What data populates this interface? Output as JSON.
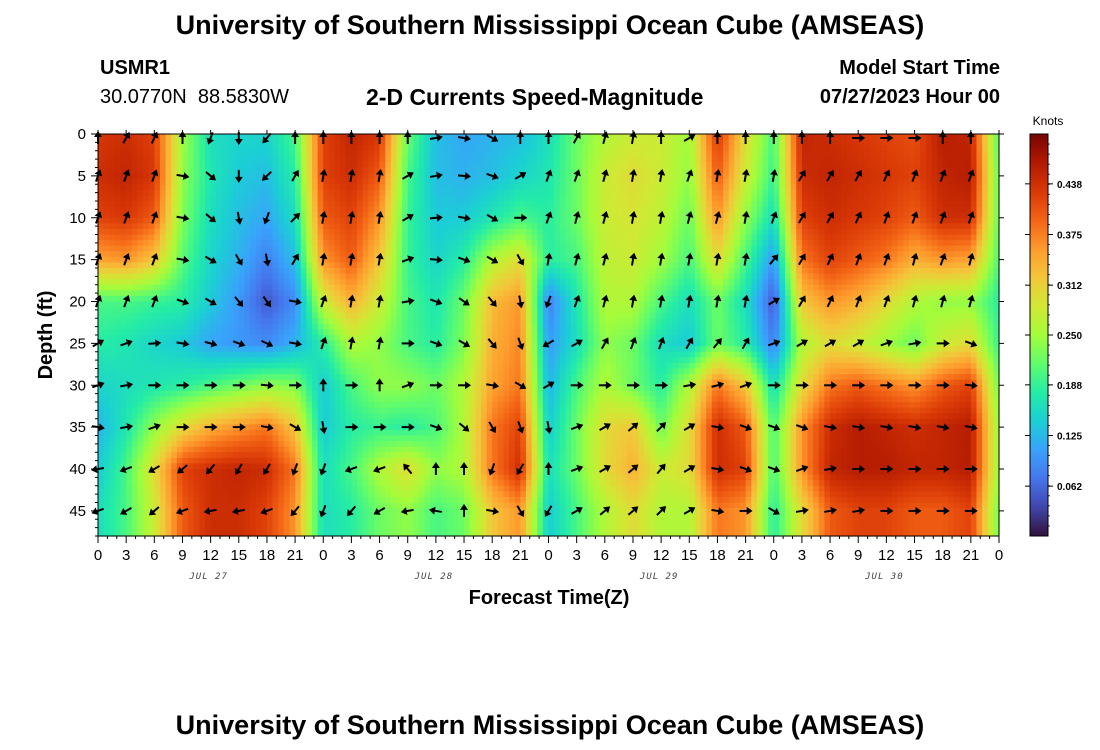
{
  "header": {
    "title": "University of Southern Mississippi Ocean Cube (AMSEAS)",
    "station_id": "USMR1",
    "station_coords": "30.0770N  88.5830W",
    "chart_subtitle": "2-D Currents Speed-Magnitude",
    "model_start_label": "Model Start Time",
    "model_start_value": "07/27/2023 Hour 00"
  },
  "footer": {
    "title": "University of Southern Mississippi Ocean Cube (AMSEAS)"
  },
  "chart_data": {
    "type": "heatmap",
    "title": "2-D Currents Speed-Magnitude",
    "xlabel": "Forecast Time(Z)",
    "ylabel": "Depth (ft)",
    "x_hours_range": [
      0,
      96
    ],
    "y_depth_range_ft": [
      0,
      48
    ],
    "x_tick_labels": [
      "0",
      "3",
      "6",
      "9",
      "12",
      "15",
      "18",
      "21",
      "0",
      "3",
      "6",
      "9",
      "12",
      "15",
      "18",
      "21",
      "0",
      "3",
      "6",
      "9",
      "12",
      "15",
      "18",
      "21",
      "0",
      "3",
      "6",
      "9",
      "12",
      "15",
      "18",
      "21",
      "0"
    ],
    "y_ticks": [
      0,
      5,
      10,
      15,
      20,
      25,
      30,
      35,
      40,
      45
    ],
    "date_labels": [
      {
        "label": "JUL 27",
        "hour": 12
      },
      {
        "label": "JUL 28",
        "hour": 36
      },
      {
        "label": "JUL 29",
        "hour": 60
      },
      {
        "label": "JUL 30",
        "hour": 84
      }
    ],
    "colorbar": {
      "unit": "Knots",
      "range": [
        0.0,
        0.5
      ],
      "tick_labels": [
        "0.438",
        "0.375",
        "0.312",
        "0.250",
        "0.188",
        "0.125",
        "0.062"
      ],
      "tick_values": [
        0.438,
        0.375,
        0.312,
        0.25,
        0.188,
        0.125,
        0.062
      ],
      "colormap": [
        "#30123b",
        "#4145ab",
        "#4675ed",
        "#39a2fc",
        "#1bcfd4",
        "#24eca6",
        "#61fc6c",
        "#a4fc3b",
        "#d1e834",
        "#f3c63a",
        "#fe9b2d",
        "#f36315",
        "#d93806",
        "#b11901",
        "#7a0403"
      ]
    },
    "speed_field_knots": {
      "depths_ft": [
        0,
        5,
        10,
        15,
        20,
        25,
        30,
        35,
        40,
        45
      ],
      "hours_step": 3,
      "rows": [
        [
          0.43,
          0.44,
          0.42,
          0.25,
          0.16,
          0.15,
          0.15,
          0.2,
          0.42,
          0.45,
          0.43,
          0.22,
          0.13,
          0.11,
          0.12,
          0.13,
          0.16,
          0.22,
          0.26,
          0.28,
          0.28,
          0.25,
          0.43,
          0.3,
          0.2,
          0.45,
          0.44,
          0.43,
          0.42,
          0.41,
          0.46,
          0.45,
          0.2
        ],
        [
          0.44,
          0.45,
          0.43,
          0.24,
          0.17,
          0.14,
          0.13,
          0.18,
          0.42,
          0.44,
          0.4,
          0.2,
          0.13,
          0.12,
          0.13,
          0.15,
          0.17,
          0.22,
          0.28,
          0.3,
          0.28,
          0.24,
          0.4,
          0.28,
          0.19,
          0.44,
          0.45,
          0.44,
          0.43,
          0.42,
          0.45,
          0.46,
          0.21
        ],
        [
          0.42,
          0.43,
          0.4,
          0.23,
          0.16,
          0.13,
          0.11,
          0.16,
          0.4,
          0.42,
          0.36,
          0.19,
          0.14,
          0.14,
          0.17,
          0.2,
          0.18,
          0.22,
          0.28,
          0.29,
          0.27,
          0.22,
          0.36,
          0.24,
          0.16,
          0.42,
          0.44,
          0.43,
          0.42,
          0.4,
          0.44,
          0.44,
          0.21
        ],
        [
          0.35,
          0.36,
          0.32,
          0.21,
          0.15,
          0.12,
          0.08,
          0.13,
          0.36,
          0.4,
          0.32,
          0.19,
          0.15,
          0.18,
          0.26,
          0.3,
          0.18,
          0.2,
          0.27,
          0.28,
          0.25,
          0.2,
          0.3,
          0.2,
          0.1,
          0.38,
          0.42,
          0.4,
          0.38,
          0.34,
          0.36,
          0.35,
          0.2
        ],
        [
          0.2,
          0.2,
          0.19,
          0.18,
          0.14,
          0.1,
          0.05,
          0.09,
          0.28,
          0.34,
          0.28,
          0.2,
          0.17,
          0.22,
          0.33,
          0.36,
          0.08,
          0.17,
          0.26,
          0.26,
          0.2,
          0.16,
          0.22,
          0.16,
          0.05,
          0.32,
          0.36,
          0.34,
          0.3,
          0.26,
          0.24,
          0.24,
          0.18
        ],
        [
          0.18,
          0.17,
          0.15,
          0.14,
          0.11,
          0.1,
          0.09,
          0.12,
          0.18,
          0.26,
          0.24,
          0.2,
          0.18,
          0.23,
          0.34,
          0.37,
          0.1,
          0.16,
          0.24,
          0.22,
          0.16,
          0.14,
          0.22,
          0.18,
          0.08,
          0.26,
          0.3,
          0.28,
          0.25,
          0.22,
          0.28,
          0.3,
          0.19
        ],
        [
          0.15,
          0.16,
          0.17,
          0.18,
          0.2,
          0.22,
          0.24,
          0.23,
          0.14,
          0.2,
          0.24,
          0.24,
          0.22,
          0.26,
          0.35,
          0.38,
          0.12,
          0.2,
          0.26,
          0.22,
          0.18,
          0.26,
          0.38,
          0.32,
          0.16,
          0.3,
          0.38,
          0.4,
          0.38,
          0.36,
          0.4,
          0.42,
          0.22
        ],
        [
          0.12,
          0.17,
          0.24,
          0.3,
          0.34,
          0.36,
          0.38,
          0.32,
          0.14,
          0.18,
          0.19,
          0.18,
          0.2,
          0.26,
          0.38,
          0.42,
          0.14,
          0.22,
          0.3,
          0.32,
          0.22,
          0.3,
          0.44,
          0.4,
          0.2,
          0.36,
          0.44,
          0.46,
          0.45,
          0.44,
          0.45,
          0.46,
          0.24
        ],
        [
          0.14,
          0.2,
          0.3,
          0.42,
          0.44,
          0.45,
          0.44,
          0.38,
          0.16,
          0.2,
          0.26,
          0.3,
          0.24,
          0.26,
          0.38,
          0.44,
          0.16,
          0.22,
          0.3,
          0.34,
          0.28,
          0.3,
          0.44,
          0.42,
          0.2,
          0.36,
          0.45,
          0.46,
          0.46,
          0.45,
          0.45,
          0.46,
          0.24
        ],
        [
          0.16,
          0.2,
          0.28,
          0.4,
          0.44,
          0.44,
          0.42,
          0.36,
          0.16,
          0.18,
          0.22,
          0.24,
          0.2,
          0.22,
          0.32,
          0.36,
          0.14,
          0.2,
          0.26,
          0.3,
          0.26,
          0.26,
          0.38,
          0.36,
          0.18,
          0.3,
          0.4,
          0.42,
          0.42,
          0.4,
          0.4,
          0.42,
          0.22
        ]
      ]
    },
    "current_direction_deg": {
      "note": "direction toward which current flows, degrees clockwise from north (up)",
      "depths_ft": [
        0,
        5,
        10,
        15,
        20,
        25,
        30,
        35,
        40,
        45
      ],
      "hours": [
        0,
        3,
        6,
        9,
        12,
        15,
        18,
        21,
        0,
        3,
        6,
        9,
        12,
        15,
        18,
        21,
        0,
        3,
        6,
        9,
        12,
        15,
        18,
        21,
        0,
        3,
        6,
        9,
        12,
        15,
        18,
        21
      ],
      "rows": [
        [
          0,
          30,
          25,
          0,
          200,
          180,
          220,
          0,
          0,
          0,
          0,
          0,
          80,
          100,
          120,
          0,
          0,
          30,
          15,
          10,
          0,
          60,
          0,
          0,
          0,
          0,
          0,
          90,
          90,
          90,
          0,
          0
        ],
        [
          20,
          20,
          20,
          100,
          130,
          180,
          225,
          30,
          10,
          10,
          10,
          60,
          80,
          95,
          110,
          60,
          20,
          20,
          15,
          10,
          10,
          20,
          10,
          10,
          10,
          30,
          30,
          30,
          25,
          20,
          20,
          20
        ],
        [
          20,
          20,
          20,
          100,
          130,
          170,
          200,
          45,
          10,
          10,
          10,
          60,
          85,
          100,
          120,
          90,
          20,
          15,
          15,
          10,
          10,
          15,
          15,
          10,
          20,
          30,
          30,
          25,
          20,
          20,
          20,
          20
        ],
        [
          20,
          20,
          20,
          100,
          120,
          150,
          170,
          30,
          10,
          10,
          10,
          70,
          95,
          110,
          120,
          150,
          10,
          15,
          15,
          10,
          10,
          10,
          10,
          10,
          40,
          30,
          25,
          20,
          20,
          15,
          20,
          15
        ],
        [
          20,
          20,
          20,
          110,
          120,
          140,
          145,
          100,
          20,
          10,
          10,
          80,
          110,
          125,
          140,
          170,
          200,
          20,
          15,
          10,
          10,
          10,
          10,
          10,
          60,
          30,
          25,
          20,
          20,
          15,
          15,
          15
        ],
        [
          60,
          70,
          85,
          100,
          105,
          110,
          115,
          100,
          20,
          10,
          10,
          90,
          110,
          120,
          140,
          160,
          240,
          60,
          30,
          20,
          20,
          30,
          40,
          30,
          70,
          60,
          60,
          60,
          70,
          80,
          90,
          110
        ],
        [
          70,
          80,
          90,
          90,
          90,
          90,
          95,
          90,
          0,
          90,
          0,
          70,
          90,
          90,
          100,
          120,
          60,
          90,
          90,
          90,
          90,
          80,
          75,
          70,
          90,
          90,
          90,
          90,
          90,
          90,
          90,
          95
        ],
        [
          100,
          80,
          70,
          90,
          90,
          90,
          100,
          120,
          170,
          90,
          90,
          90,
          110,
          130,
          150,
          160,
          170,
          70,
          60,
          50,
          45,
          60,
          100,
          110,
          110,
          110,
          100,
          100,
          100,
          100,
          100,
          100
        ],
        [
          260,
          250,
          240,
          230,
          220,
          210,
          210,
          200,
          200,
          250,
          250,
          320,
          0,
          0,
          200,
          210,
          0,
          70,
          60,
          50,
          40,
          60,
          100,
          110,
          110,
          70,
          80,
          90,
          90,
          90,
          90,
          90
        ],
        [
          250,
          240,
          230,
          250,
          260,
          260,
          250,
          220,
          200,
          220,
          240,
          260,
          280,
          0,
          100,
          150,
          210,
          60,
          50,
          50,
          45,
          60,
          100,
          90,
          120,
          80,
          80,
          80,
          90,
          90,
          90,
          90
        ]
      ]
    }
  }
}
